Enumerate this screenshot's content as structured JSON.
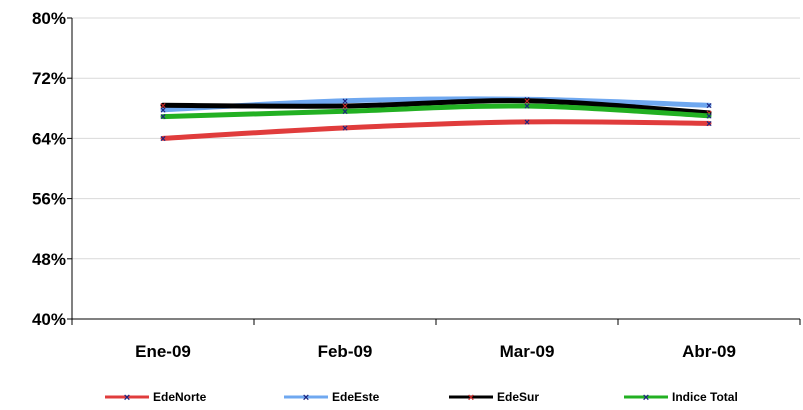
{
  "chart_data": {
    "type": "line",
    "categories": [
      "Ene-09",
      "Feb-09",
      "Mar-09",
      "Abr-09"
    ],
    "y_tick_labels": [
      "40%",
      "48%",
      "56%",
      "64%",
      "72%",
      "80%"
    ],
    "ylim": [
      40,
      80
    ],
    "y_ticks": [
      40,
      48,
      56,
      64,
      72,
      80
    ],
    "grid": true,
    "legend_position": "bottom",
    "series": [
      {
        "name": "EdeNorte",
        "color": "#e03c3c",
        "values": [
          64.0,
          65.4,
          66.2,
          66.0
        ]
      },
      {
        "name": "EdeEste",
        "color": "#6fa8f0",
        "values": [
          67.8,
          69.0,
          69.2,
          68.4
        ]
      },
      {
        "name": "EdeSur",
        "color": "#000000",
        "values": [
          68.4,
          68.3,
          69.0,
          67.4
        ]
      },
      {
        "name": "Indice Total",
        "color": "#22b022",
        "values": [
          66.9,
          67.6,
          68.3,
          67.0
        ]
      }
    ]
  }
}
